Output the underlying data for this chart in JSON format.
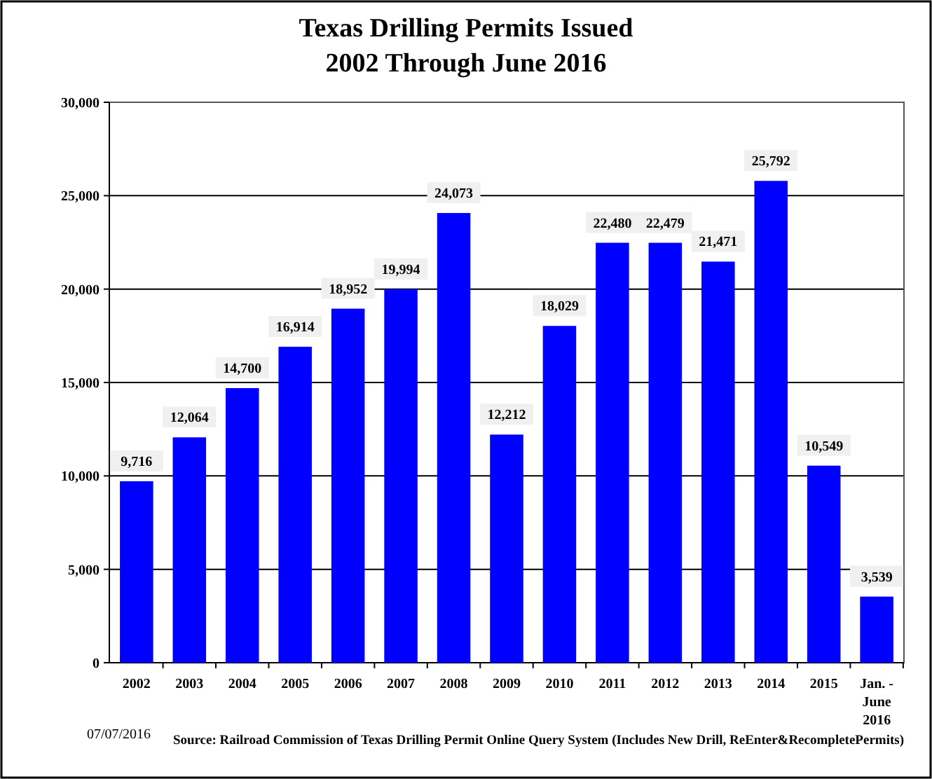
{
  "chart_data": {
    "type": "bar",
    "title": "Texas Drilling Permits Issued",
    "subtitle": "2002 Through June 2016",
    "categories": [
      "2002",
      "2003",
      "2004",
      "2005",
      "2006",
      "2007",
      "2008",
      "2009",
      "2010",
      "2011",
      "2012",
      "2013",
      "2014",
      "2015",
      "Jan. - June 2016"
    ],
    "values": [
      9716,
      12064,
      14700,
      16914,
      18952,
      19994,
      24073,
      12212,
      18029,
      22480,
      22479,
      21471,
      25792,
      10549,
      3539
    ],
    "color": "#0000ff",
    "ylim": [
      0,
      30000
    ],
    "yticks": [
      {
        "value": 0,
        "label": "0"
      },
      {
        "value": 5000,
        "label": "5,000"
      },
      {
        "value": 10000,
        "label": "10,000"
      },
      {
        "value": 15000,
        "label": "15,000"
      },
      {
        "value": 20000,
        "label": "20,000"
      },
      {
        "value": 25000,
        "label": "25,000"
      },
      {
        "value": 30000,
        "label": "30,000"
      }
    ],
    "value_labels": [
      "9,716",
      "12,064",
      "14,700",
      "16,914",
      "18,952",
      "19,994",
      "24,073",
      "12,212",
      "18,029",
      "22,480",
      "22,479",
      "21,471",
      "25,792",
      "10,549",
      "3,539"
    ],
    "grid": "y",
    "annotations": [
      "07/07/2016",
      "Source: Railroad Commission of Texas Drilling Permit Online Query System (Includes New Drill, ReEnter&RecompletePermits)"
    ]
  }
}
